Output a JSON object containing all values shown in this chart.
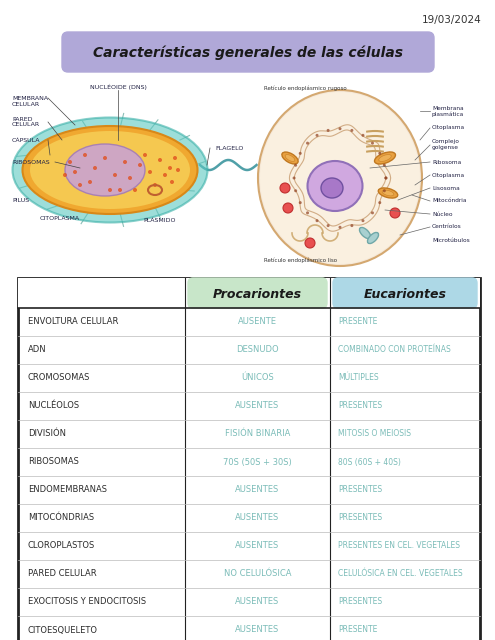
{
  "date_text": "19/03/2024",
  "title": "Características generales de las células",
  "title_bg_color": "#b0a8d8",
  "table_header_col2": "Procariontes",
  "table_header_col3": "Eucariontes",
  "header_col2_bg": "#c8e6c9",
  "header_col3_bg": "#add8e6",
  "rows": [
    [
      "ENVOLTURA CELULAR",
      "AUSENTE",
      "PRESENTE"
    ],
    [
      "ADN",
      "DESNUDO",
      "COMBINADO CON PROTEÍNAS"
    ],
    [
      "CROMOSOMAS",
      "ÚNICOS",
      "MÚLTIPLES"
    ],
    [
      "NUCLÉOLOS",
      "AUSENTES",
      "PRESENTES"
    ],
    [
      "DIVISIÓN",
      "FISIÓN BINARIA",
      "MITOSIS O MEIOSIS"
    ],
    [
      "RIBOSOMAS",
      "70S (50S + 30S)",
      "80S (60S + 40S)"
    ],
    [
      "ENDOMEMBRANAS",
      "AUSENTES",
      "PRESENTES"
    ],
    [
      "MITOCÓNDRIAS",
      "AUSENTES",
      "PRESENTES"
    ],
    [
      "CLOROPLASTOS",
      "AUSENTES",
      "PRESENTES EN CEL. VEGETALES"
    ],
    [
      "PARED CELULAR",
      "NO CELULÓSICA",
      "CELULÓSICA EN CEL. VEGETALES"
    ],
    [
      "EXOCITOSIS Y ENDOCITOSIS",
      "AUSENTES",
      "PRESENTES"
    ],
    [
      "CITOESQUELETO",
      "AUSENTES",
      "PRESENTE"
    ]
  ],
  "col1_color": "#2c2c2c",
  "col2_color": "#7bbcb8",
  "col3_color": "#7bbcb8",
  "table_border_color": "#222222",
  "bg_color": "#ffffff"
}
